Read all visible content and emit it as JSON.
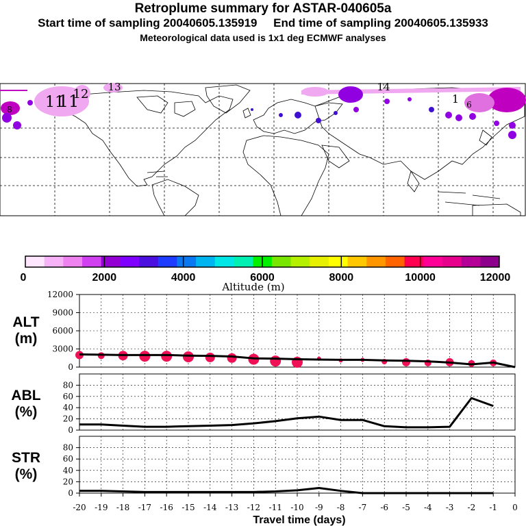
{
  "header": {
    "title": "Retroplume summary for ASTAR-040605a",
    "start_label": "Start time of sampling",
    "start_value": "20040605.135919",
    "end_label": "End time of sampling",
    "end_value": "20040605.135933",
    "met_text": "Meteorological data used is 1x1 deg ECMWF analyses"
  },
  "map": {
    "plume_labels": [
      "11",
      "11",
      "12",
      "13",
      "14",
      "1",
      "8",
      "6"
    ],
    "plume_colors": [
      "#f0a8f0",
      "#e070e0",
      "#9000e0",
      "#4010d0",
      "#c000c0"
    ]
  },
  "colorbar": {
    "ticks": [
      "0",
      "2000",
      "4000",
      "6000",
      "8000",
      "10000",
      "12000"
    ],
    "label": "Altitude (m)",
    "colors": [
      "#ffe6ff",
      "#f7b3f7",
      "#ee82ee",
      "#d040f0",
      "#9400d3",
      "#7f00ff",
      "#4b0fe0",
      "#1e3cff",
      "#0a78f0",
      "#00b4f0",
      "#00e6e6",
      "#00f0b4",
      "#00f000",
      "#78e600",
      "#b4f000",
      "#e6f000",
      "#ffff00",
      "#ffc800",
      "#ff9600",
      "#ff6400",
      "#ff0050",
      "#ff0096",
      "#e6008c",
      "#b40096",
      "#8c008c"
    ]
  },
  "chart_data": [
    {
      "type": "line",
      "panel": "ALT",
      "ylabel": [
        "ALT",
        "(m)"
      ],
      "ylim": [
        0,
        12000
      ],
      "yticks": [
        "12000",
        "9000",
        "6000",
        "3000",
        "0"
      ],
      "x": [
        -20,
        -19,
        -18,
        -17,
        -16,
        -15,
        -14,
        -13,
        -12,
        -11,
        -10,
        -9,
        -8,
        -7,
        -6,
        -5,
        -4,
        -3,
        -2,
        -1,
        0
      ],
      "values": [
        2100,
        2050,
        2000,
        2000,
        2000,
        1900,
        1850,
        1750,
        1450,
        1400,
        1300,
        1250,
        1200,
        1200,
        1100,
        1050,
        950,
        750,
        450,
        750,
        0
      ],
      "markers": [
        {
          "x": -20,
          "y": 2000,
          "r": 6
        },
        {
          "x": -19,
          "y": 1900,
          "r": 5
        },
        {
          "x": -18,
          "y": 1900,
          "r": 7
        },
        {
          "x": -17,
          "y": 1800,
          "r": 8
        },
        {
          "x": -16,
          "y": 1800,
          "r": 8
        },
        {
          "x": -15,
          "y": 1700,
          "r": 8
        },
        {
          "x": -14,
          "y": 1600,
          "r": 7
        },
        {
          "x": -13,
          "y": 1500,
          "r": 7
        },
        {
          "x": -12,
          "y": 1300,
          "r": 8
        },
        {
          "x": -11,
          "y": 1000,
          "r": 8
        },
        {
          "x": -10,
          "y": 800,
          "r": 8
        },
        {
          "x": -9,
          "y": 1400,
          "r": 3
        },
        {
          "x": -8,
          "y": 1100,
          "r": 3
        },
        {
          "x": -7,
          "y": 1200,
          "r": 3
        },
        {
          "x": -6,
          "y": 900,
          "r": 4
        },
        {
          "x": -5,
          "y": 800,
          "r": 6
        },
        {
          "x": -4,
          "y": 700,
          "r": 5
        },
        {
          "x": -3,
          "y": 800,
          "r": 6
        },
        {
          "x": -2,
          "y": 600,
          "r": 5
        },
        {
          "x": -1,
          "y": 700,
          "r": 5
        }
      ],
      "marker_color": "#ee1155"
    },
    {
      "type": "line",
      "panel": "ABL",
      "ylabel": [
        "ABL",
        "(%)"
      ],
      "ylim": [
        0,
        100
      ],
      "yticks": [
        "80",
        "60",
        "40",
        "20",
        "0"
      ],
      "x": [
        -20,
        -19,
        -18,
        -17,
        -16,
        -15,
        -14,
        -13,
        -12,
        -11,
        -10,
        -9,
        -8,
        -7,
        -6,
        -5,
        -4,
        -3,
        -2,
        -1
      ],
      "values": [
        10,
        10,
        8,
        6,
        6,
        7,
        8,
        9,
        12,
        16,
        21,
        24,
        18,
        18,
        7,
        5,
        5,
        6,
        57,
        43
      ]
    },
    {
      "type": "line",
      "panel": "STR",
      "ylabel": [
        "STR",
        "(%)"
      ],
      "ylim": [
        0,
        100
      ],
      "yticks": [
        "80",
        "60",
        "40",
        "20",
        "0"
      ],
      "x": [
        -20,
        -19,
        -18,
        -17,
        -16,
        -15,
        -14,
        -13,
        -12,
        -11,
        -10,
        -9,
        -8,
        -7,
        -6,
        -5,
        -4,
        -3,
        -2,
        -1
      ],
      "values": [
        4,
        4,
        3,
        2,
        2,
        2,
        2,
        2,
        2,
        3,
        5,
        9,
        4,
        0,
        0,
        0,
        0,
        0,
        0,
        0
      ]
    }
  ],
  "xaxis": {
    "ticks": [
      "-20",
      "-19",
      "-18",
      "-17",
      "-16",
      "-15",
      "-14",
      "-13",
      "-12",
      "-11",
      "-10",
      "-9",
      "-8",
      "-7",
      "-6",
      "-5",
      "-4",
      "-3",
      "-2",
      "-1",
      "0"
    ],
    "label": "Travel time (days)"
  }
}
